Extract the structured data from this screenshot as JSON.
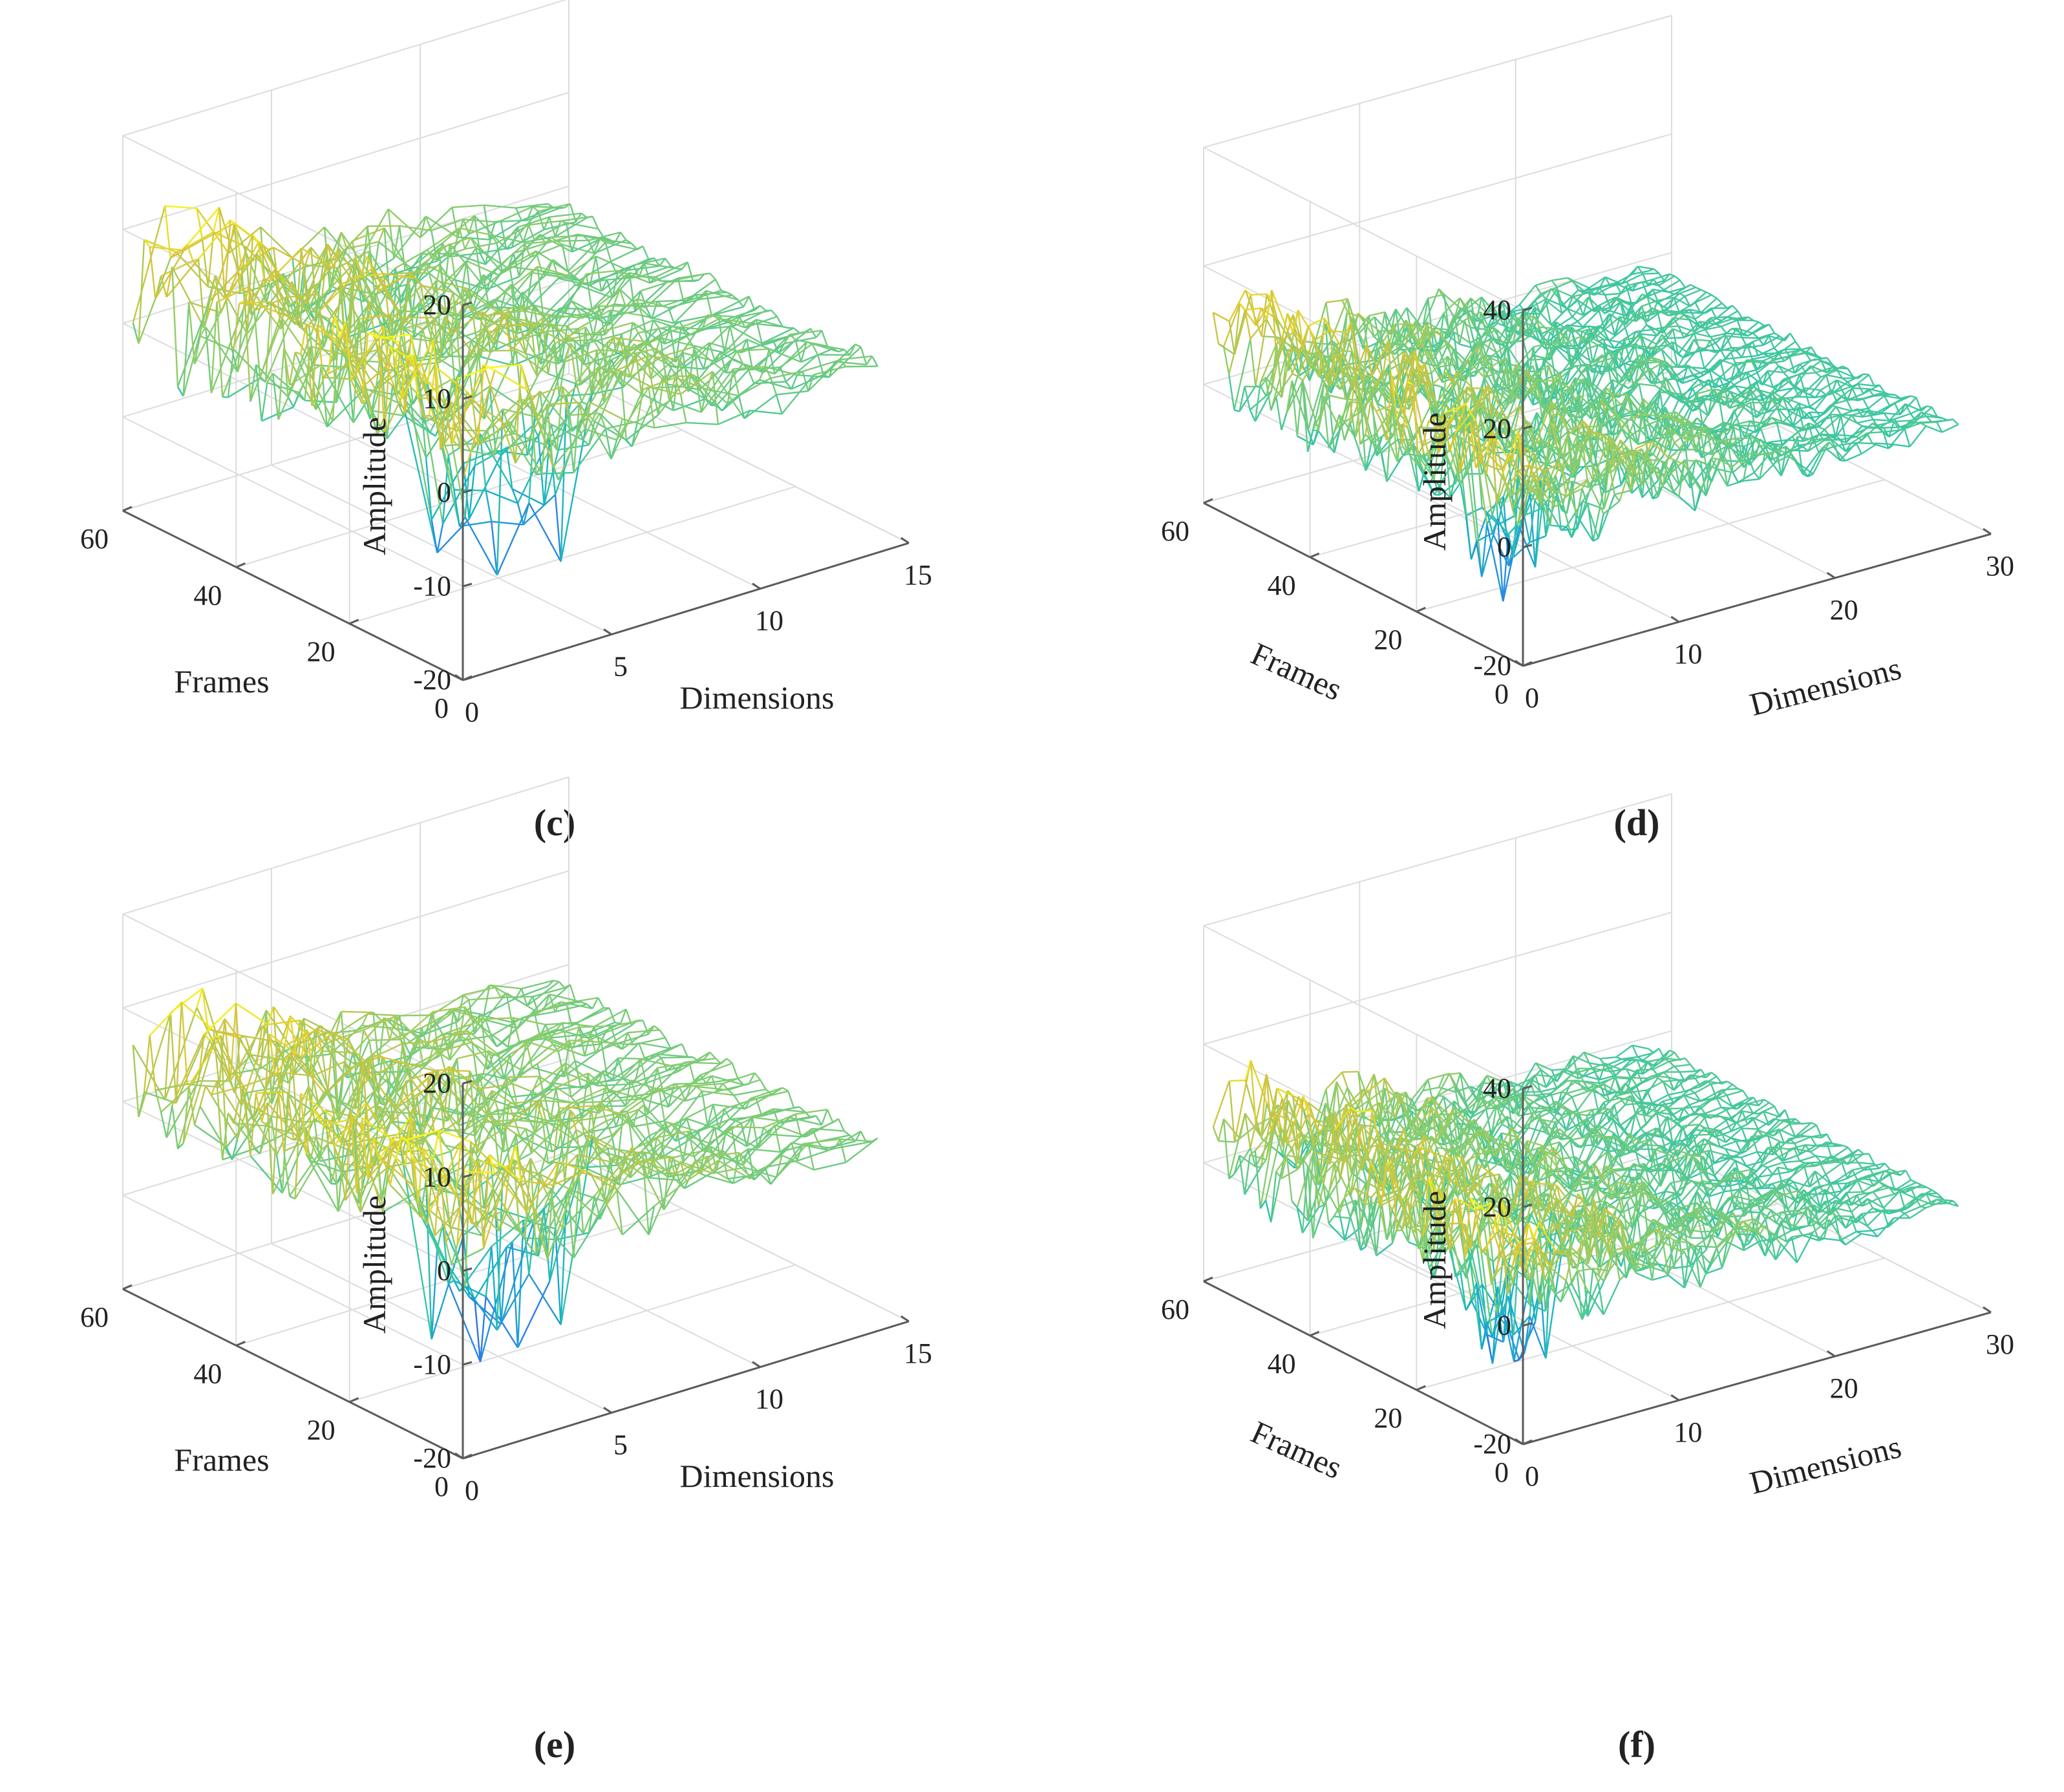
{
  "figure": {
    "panel_count": 4
  },
  "chart_data": [
    {
      "panel_label": "c",
      "caption": "(c)",
      "type": "surface-mesh",
      "zlabel": "Amplitude",
      "xlabel": "Dimensions",
      "ylabel": "Frames",
      "zlim": [
        -20,
        20
      ],
      "z_ticks": [
        "20",
        "10",
        "0",
        "-10",
        "-20"
      ],
      "xlim": [
        0,
        15
      ],
      "x_ticks": [
        "0",
        "5",
        "10",
        "15"
      ],
      "ylim": [
        0,
        60
      ],
      "y_ticks": [
        "0",
        "20",
        "40",
        "60"
      ],
      "grid": true,
      "colormap": "parula",
      "frames": 60,
      "dims": 14,
      "seed": 3,
      "surface_peaks": {
        "max": 12,
        "min": -18
      }
    },
    {
      "panel_label": "d",
      "caption": "(d)",
      "type": "surface-mesh",
      "zlabel": "Amplitude",
      "xlabel": "Dimensions",
      "ylabel": "Frames",
      "zlim": [
        -20,
        40
      ],
      "z_ticks": [
        "40",
        "20",
        "0",
        "-20"
      ],
      "xlim": [
        0,
        30
      ],
      "x_ticks": [
        "0",
        "10",
        "20",
        "30"
      ],
      "ylim": [
        0,
        60
      ],
      "y_ticks": [
        "0",
        "20",
        "40",
        "60"
      ],
      "grid": true,
      "colormap": "parula",
      "frames": 60,
      "dims": 28,
      "seed": 7,
      "surface_peaks": {
        "max": 18,
        "min": -19
      }
    },
    {
      "panel_label": "e",
      "caption": "(e)",
      "type": "surface-mesh",
      "zlabel": "Amplitude",
      "xlabel": "Dimensions",
      "ylabel": "Frames",
      "zlim": [
        -20,
        20
      ],
      "z_ticks": [
        "20",
        "10",
        "0",
        "-10",
        "-20"
      ],
      "xlim": [
        0,
        15
      ],
      "x_ticks": [
        "0",
        "5",
        "10",
        "15"
      ],
      "ylim": [
        0,
        60
      ],
      "y_ticks": [
        "0",
        "20",
        "40",
        "60"
      ],
      "grid": true,
      "colormap": "parula",
      "frames": 60,
      "dims": 14,
      "seed": 11,
      "surface_peaks": {
        "max": 11,
        "min": -18
      }
    },
    {
      "panel_label": "f",
      "caption": "(f)",
      "type": "surface-mesh",
      "zlabel": "Amplitude",
      "xlabel": "Dimensions",
      "ylabel": "Frames",
      "zlim": [
        -20,
        40
      ],
      "z_ticks": [
        "40",
        "20",
        "0",
        "-20"
      ],
      "xlim": [
        0,
        30
      ],
      "x_ticks": [
        "0",
        "10",
        "20",
        "30"
      ],
      "ylim": [
        0,
        60
      ],
      "y_ticks": [
        "0",
        "20",
        "40",
        "60"
      ],
      "grid": true,
      "colormap": "parula",
      "frames": 60,
      "dims": 28,
      "seed": 13,
      "surface_peaks": {
        "max": 17,
        "min": -19
      }
    }
  ],
  "colors": {
    "grid": "#dcdcdc",
    "axis": "#5a5a5a",
    "text": "#222222",
    "parula": [
      "#3e26a8",
      "#2e7fe8",
      "#17b0c8",
      "#39c6a3",
      "#8ccd6c",
      "#d7c43a",
      "#f9fb15"
    ]
  }
}
